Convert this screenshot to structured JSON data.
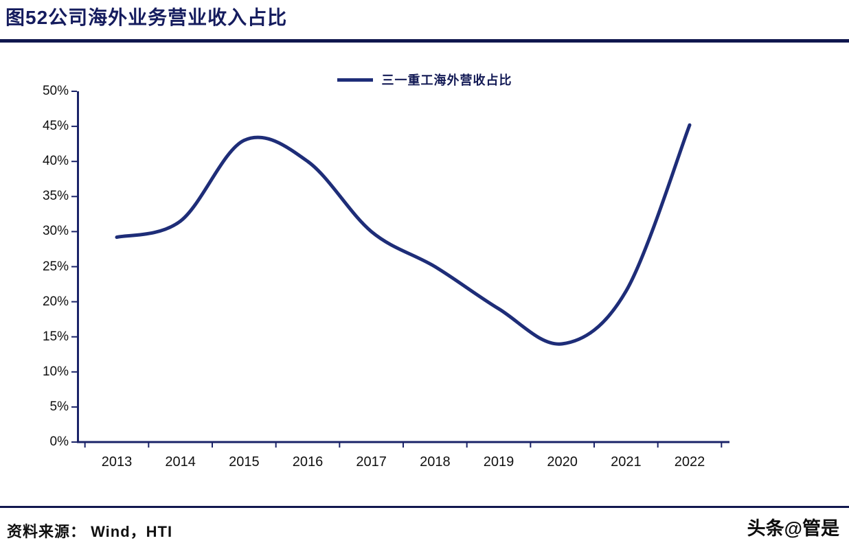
{
  "title": "图52公司海外业务营业收入占比",
  "source_label": "资料来源：  Wind，HTI",
  "watermark": "头条@管是",
  "colors": {
    "accent": "#151c5e",
    "line": "#1e2d78",
    "axis": "#1a2368",
    "text": "#101010"
  },
  "chart_data": {
    "type": "line",
    "title": "图52公司海外业务营业收入占比",
    "categories": [
      "2013",
      "2014",
      "2015",
      "2016",
      "2017",
      "2018",
      "2019",
      "2020",
      "2021",
      "2022"
    ],
    "series": [
      {
        "name": "三一重工海外营收占比",
        "values": [
          29.2,
          31.5,
          43.0,
          40.0,
          30.0,
          25.0,
          19.0,
          14.0,
          21.5,
          45.2
        ]
      }
    ],
    "ylim": [
      0,
      50
    ],
    "ytick_step": 5,
    "ytick_suffix": "%",
    "xlabel": "",
    "ylabel": "",
    "legend_position": "top-center",
    "grid": false
  }
}
